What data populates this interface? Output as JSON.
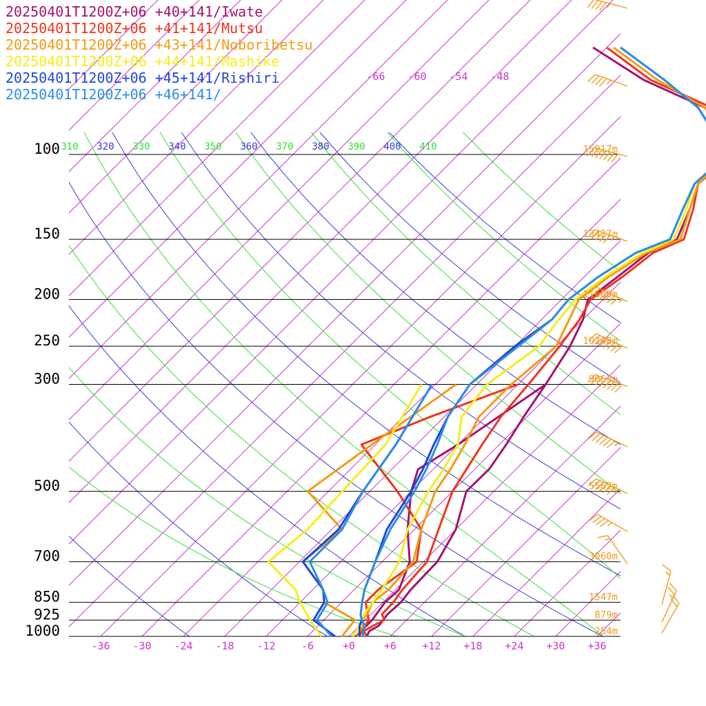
{
  "colors": {
    "isotherm": "#cc33cc",
    "theta": "#3a3ad6",
    "theta_e": "#33e033",
    "isobar": "#000000",
    "height": "#f29a1c",
    "barb": "#f29a1c"
  },
  "chart_data": {
    "type": "line",
    "title": "",
    "legend_position": "top-left",
    "pressure_levels": [
      100,
      150,
      200,
      250,
      300,
      500,
      700,
      850,
      925,
      1000
    ],
    "pressure_labels": [
      "100",
      "150",
      "200",
      "250",
      "300",
      "500",
      "700",
      "850",
      "925",
      "1000"
    ],
    "xlim": [
      -39,
      41
    ],
    "ylim_hpa": [
      1000,
      100
    ],
    "x_ticks": [
      "-36",
      "-30",
      "-24",
      "-18",
      "-12",
      "-6",
      "+0",
      "+6",
      "+12",
      "+18",
      "+24",
      "+30",
      "+36"
    ],
    "x_tick_values": [
      -36,
      -30,
      -24,
      -18,
      -12,
      -6,
      0,
      6,
      12,
      18,
      24,
      30,
      36
    ],
    "upper_isotherm_labels": [
      {
        "text": "-66",
        "value": -66
      },
      {
        "text": "-60",
        "value": -60
      },
      {
        "text": "-54",
        "value": -54
      },
      {
        "text": "-48",
        "value": -48
      }
    ],
    "theta_labels": [
      {
        "text": "310",
        "value": 310,
        "kind": "theta_e"
      },
      {
        "text": "320",
        "value": 320,
        "kind": "theta"
      },
      {
        "text": "330",
        "value": 330,
        "kind": "theta_e"
      },
      {
        "text": "340",
        "value": 340,
        "kind": "theta"
      },
      {
        "text": "350",
        "value": 350,
        "kind": "theta_e"
      },
      {
        "text": "360",
        "value": 360,
        "kind": "theta"
      },
      {
        "text": "370",
        "value": 370,
        "kind": "theta_e"
      },
      {
        "text": "380",
        "value": 380,
        "kind": "theta"
      },
      {
        "text": "390",
        "value": 390,
        "kind": "theta_e"
      },
      {
        "text": "400",
        "value": 400,
        "kind": "theta"
      },
      {
        "text": "410",
        "value": 410,
        "kind": "theta_e"
      }
    ],
    "heights": [
      {
        "p": 100,
        "text": "15917m"
      },
      {
        "p": 150,
        "text": "13427m"
      },
      {
        "p": 200,
        "text": "11660m"
      },
      {
        "p": 250,
        "text": "10248m"
      },
      {
        "p": 300,
        "text": "9063m"
      },
      {
        "p": 500,
        "text": "5562m"
      },
      {
        "p": 700,
        "text": "3060m"
      },
      {
        "p": 850,
        "text": "1547m"
      },
      {
        "p": 925,
        "text": "879m"
      },
      {
        "p": 1000,
        "text": "254m"
      }
    ],
    "series": [
      {
        "name": "20250401T1200Z+06 +40+141/Iwate",
        "color": "#a3126e",
        "temperature": [
          [
            1000,
            2.6
          ],
          [
            975,
            2.2
          ],
          [
            950,
            2.8
          ],
          [
            925,
            2.6
          ],
          [
            900,
            2.4
          ],
          [
            850,
            2.6
          ],
          [
            800,
            2.2
          ],
          [
            700,
            2.0
          ],
          [
            600,
            0.0
          ],
          [
            500,
            -4.0
          ],
          [
            450,
            -3.9
          ],
          [
            400,
            -5.0
          ],
          [
            350,
            -6.5
          ],
          [
            300,
            -8.0
          ],
          [
            250,
            -10.0
          ],
          [
            220,
            -12.0
          ],
          [
            200,
            -14.2
          ],
          [
            180,
            -13.2
          ],
          [
            160,
            -12.2
          ],
          [
            150,
            -10.0
          ],
          [
            130,
            -12.5
          ],
          [
            115,
            -15.0
          ],
          [
            100,
            -14.0
          ],
          [
            80,
            -25
          ],
          [
            70,
            -38
          ],
          [
            60,
            -50
          ]
        ],
        "dewpoint": [
          [
            300,
            -8.0
          ],
          [
            400,
            -12.0
          ],
          [
            450,
            -14.2
          ],
          [
            500,
            -12.0
          ],
          [
            600,
            -7.0
          ],
          [
            700,
            -2.0
          ],
          [
            800,
            0.5
          ],
          [
            850,
            0.3
          ],
          [
            925,
            1.0
          ],
          [
            1000,
            1.0
          ]
        ]
      },
      {
        "name": "20250401T1200Z+06 +41+141/Mutsu",
        "color": "#f0341c",
        "temperature": [
          [
            1000,
            2.6
          ],
          [
            975,
            1.4
          ],
          [
            950,
            2.0
          ],
          [
            925,
            2.8
          ],
          [
            900,
            1.6
          ],
          [
            850,
            1.5
          ],
          [
            800,
            1.0
          ],
          [
            700,
            0.5
          ],
          [
            600,
            -2.5
          ],
          [
            500,
            -6.0
          ],
          [
            400,
            -8.5
          ],
          [
            350,
            -9.8
          ],
          [
            300,
            -10.5
          ],
          [
            250,
            -11.5
          ],
          [
            220,
            -12.5
          ],
          [
            200,
            -13.8
          ],
          [
            180,
            -12.5
          ],
          [
            160,
            -11.5
          ],
          [
            150,
            -9.0
          ],
          [
            130,
            -12.0
          ],
          [
            115,
            -15.0
          ],
          [
            100,
            -14.5
          ],
          [
            80,
            -24
          ],
          [
            70,
            -37
          ],
          [
            60,
            -48
          ]
        ],
        "dewpoint": [
          [
            300,
            -12.0
          ],
          [
            350,
            -20.0
          ],
          [
            400,
            -26.0
          ],
          [
            500,
            -14.0
          ],
          [
            600,
            -5.0
          ],
          [
            700,
            -1.0
          ],
          [
            800,
            -2.5
          ],
          [
            850,
            -2.5
          ],
          [
            925,
            0.5
          ],
          [
            1000,
            1.5
          ]
        ]
      },
      {
        "name": "20250401T1200Z+06 +43+141/Noboribetsu",
        "color": "#f59a10",
        "temperature": [
          [
            1000,
            1.2
          ],
          [
            950,
            0.5
          ],
          [
            925,
            -0.5
          ],
          [
            900,
            -0.5
          ],
          [
            850,
            -1.5
          ],
          [
            800,
            -1.0
          ],
          [
            700,
            -1.5
          ],
          [
            600,
            -5.0
          ],
          [
            500,
            -8.5
          ],
          [
            450,
            -9.5
          ],
          [
            400,
            -11.0
          ],
          [
            350,
            -13.0
          ],
          [
            300,
            -13.0
          ],
          [
            250,
            -12.0
          ],
          [
            220,
            -14.0
          ],
          [
            200,
            -15.5
          ],
          [
            180,
            -14.5
          ],
          [
            160,
            -12.5
          ],
          [
            150,
            -9.5
          ],
          [
            130,
            -12.5
          ],
          [
            115,
            -15.0
          ],
          [
            100,
            -14.5
          ],
          [
            80,
            -25
          ],
          [
            70,
            -36
          ],
          [
            60,
            -47
          ]
        ],
        "dewpoint": [
          [
            300,
            -21.0
          ],
          [
            400,
            -24.5
          ],
          [
            500,
            -27.0
          ],
          [
            600,
            -16.5
          ],
          [
            700,
            -17.5
          ],
          [
            800,
            -10.5
          ],
          [
            850,
            -8.5
          ],
          [
            925,
            -1.5
          ],
          [
            1000,
            -1.0
          ]
        ]
      },
      {
        "name": "20250401T1200Z+06 +44+141/Mashike",
        "color": "#f4ee1a",
        "temperature": [
          [
            1000,
            0.5
          ],
          [
            950,
            0.0
          ],
          [
            925,
            -0.5
          ],
          [
            900,
            -1.0
          ],
          [
            850,
            -1.5
          ],
          [
            800,
            -2.0
          ],
          [
            700,
            -3.5
          ],
          [
            600,
            -7.0
          ],
          [
            500,
            -9.5
          ],
          [
            450,
            -10.5
          ],
          [
            400,
            -12.0
          ],
          [
            350,
            -15.5
          ],
          [
            300,
            -16.5
          ],
          [
            250,
            -14.5
          ],
          [
            220,
            -15.5
          ],
          [
            200,
            -16.0
          ],
          [
            180,
            -15.0
          ],
          [
            160,
            -13.0
          ],
          [
            150,
            -10.5
          ],
          [
            130,
            -13.0
          ],
          [
            115,
            -15.5
          ],
          [
            100,
            -15.0
          ],
          [
            80,
            -26
          ],
          [
            70,
            -35
          ],
          [
            60,
            -46
          ]
        ],
        "dewpoint": [
          [
            300,
            -26.0
          ],
          [
            400,
            -22.5
          ],
          [
            500,
            -22.0
          ],
          [
            600,
            -21.5
          ],
          [
            700,
            -22.5
          ],
          [
            800,
            -14.5
          ],
          [
            850,
            -12.0
          ],
          [
            925,
            -8.0
          ],
          [
            1000,
            -4.0
          ]
        ]
      },
      {
        "name": "20250401T1200Z+06 +45+141/Rishiri",
        "color": "#1e47d8",
        "temperature": [
          [
            1000,
            1.5
          ],
          [
            950,
            0.0
          ],
          [
            925,
            -0.5
          ],
          [
            900,
            -1.5
          ],
          [
            850,
            -3.0
          ],
          [
            800,
            -4.5
          ],
          [
            700,
            -7.0
          ],
          [
            600,
            -10.0
          ],
          [
            500,
            -12.0
          ],
          [
            450,
            -13.5
          ],
          [
            400,
            -15.5
          ],
          [
            350,
            -17.5
          ],
          [
            300,
            -19.0
          ],
          [
            250,
            -18.0
          ],
          [
            220,
            -16.5
          ],
          [
            200,
            -17.0
          ],
          [
            180,
            -16.0
          ],
          [
            160,
            -14.0
          ],
          [
            150,
            -11.0
          ],
          [
            130,
            -13.5
          ],
          [
            115,
            -15.5
          ],
          [
            100,
            -15.0
          ],
          [
            80,
            -26
          ],
          [
            70,
            -35
          ],
          [
            60,
            -46
          ]
        ],
        "dewpoint": [
          [
            300,
            -24.5
          ],
          [
            400,
            -21.0
          ],
          [
            500,
            -19.0
          ],
          [
            600,
            -17.0
          ],
          [
            700,
            -17.5
          ],
          [
            800,
            -10.5
          ],
          [
            850,
            -8.5
          ],
          [
            925,
            -7.5
          ],
          [
            1000,
            -2.0
          ]
        ]
      },
      {
        "name": "20250401T1200Z+06 +46+141/",
        "color": "#2b8ee6",
        "temperature": [
          [
            1000,
            2.0
          ],
          [
            950,
            0.8
          ],
          [
            925,
            -0.5
          ],
          [
            900,
            -1.5
          ],
          [
            850,
            -3.0
          ],
          [
            800,
            -4.5
          ],
          [
            700,
            -7.0
          ],
          [
            600,
            -9.5
          ],
          [
            500,
            -11.5
          ],
          [
            450,
            -13.0
          ],
          [
            400,
            -15.0
          ],
          [
            350,
            -17.5
          ],
          [
            300,
            -19.0
          ],
          [
            250,
            -17.5
          ],
          [
            220,
            -16.5
          ],
          [
            200,
            -17.0
          ],
          [
            180,
            -16.0
          ],
          [
            160,
            -14.0
          ],
          [
            150,
            -11.0
          ],
          [
            130,
            -13.5
          ],
          [
            115,
            -15.5
          ],
          [
            100,
            -15.0
          ],
          [
            80,
            -26
          ],
          [
            70,
            -35
          ],
          [
            60,
            -46
          ]
        ],
        "dewpoint": [
          [
            300,
            -24.5
          ],
          [
            400,
            -21.0
          ],
          [
            500,
            -19.0
          ],
          [
            600,
            -16.5
          ],
          [
            700,
            -16.5
          ],
          [
            800,
            -10.5
          ],
          [
            850,
            -8.0
          ],
          [
            925,
            -7.0
          ],
          [
            1000,
            -2.5
          ]
        ]
      }
    ],
    "wind_barbs": [
      {
        "p": 60,
        "dir": 285,
        "speed_kt": 45
      },
      {
        "p": 80,
        "dir": 290,
        "speed_kt": 45
      },
      {
        "p": 100,
        "dir": 285,
        "speed_kt": 70
      },
      {
        "p": 150,
        "dir": 290,
        "speed_kt": 55
      },
      {
        "p": 200,
        "dir": 295,
        "speed_kt": 75
      },
      {
        "p": 250,
        "dir": 295,
        "speed_kt": 80
      },
      {
        "p": 300,
        "dir": 290,
        "speed_kt": 80
      },
      {
        "p": 400,
        "dir": 295,
        "speed_kt": 65
      },
      {
        "p": 500,
        "dir": 295,
        "speed_kt": 65
      },
      {
        "p": 600,
        "dir": 300,
        "speed_kt": 45
      },
      {
        "p": 700,
        "dir": 325,
        "speed_kt": 15
      },
      {
        "p": 850,
        "dir": 15,
        "speed_kt": 15
      },
      {
        "p": 925,
        "dir": 25,
        "speed_kt": 25
      },
      {
        "p": 975,
        "dir": 30,
        "speed_kt": 20
      }
    ]
  }
}
